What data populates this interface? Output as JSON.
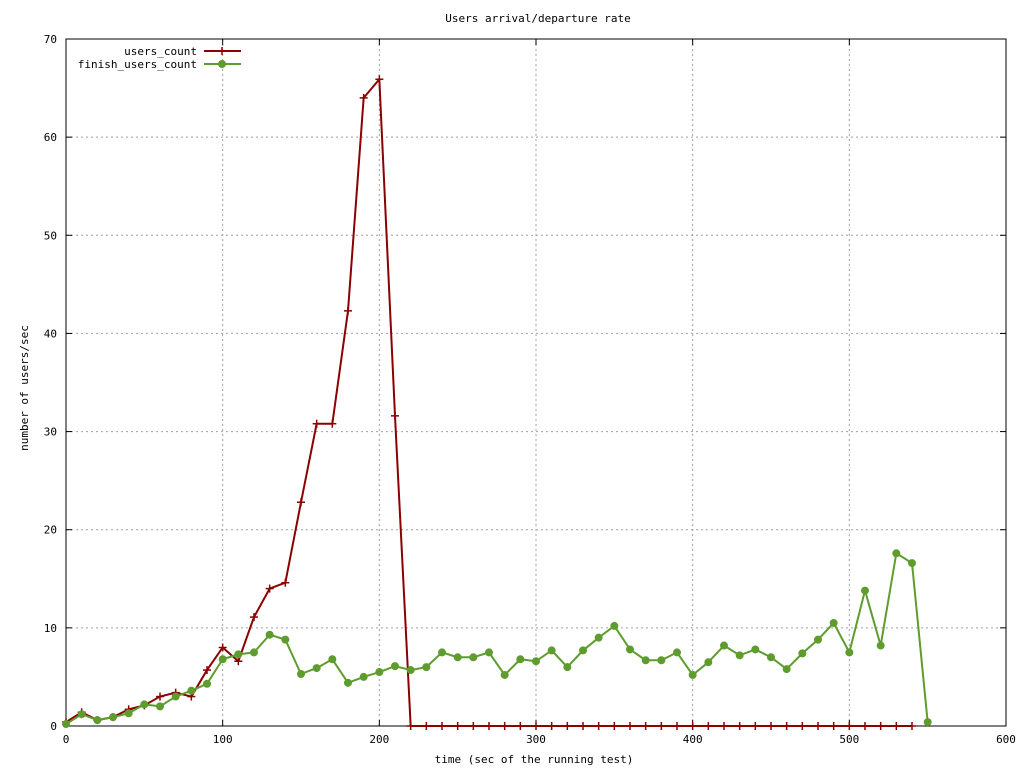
{
  "chart_data": {
    "type": "line",
    "title": "Users arrival/departure rate",
    "xlabel": "time (sec of the running test)",
    "ylabel": "number of users/sec",
    "xlim": [
      0,
      600
    ],
    "ylim": [
      0,
      70
    ],
    "xticks": [
      0,
      100,
      200,
      300,
      400,
      500,
      600
    ],
    "yticks": [
      0,
      10,
      20,
      30,
      40,
      50,
      60,
      70
    ],
    "grid": true,
    "legend_position": "top-left",
    "series": [
      {
        "name": "users_count",
        "color": "#8b0000",
        "marker": "plus",
        "x": [
          0,
          10,
          20,
          30,
          40,
          50,
          60,
          70,
          80,
          90,
          100,
          110,
          120,
          130,
          140,
          150,
          160,
          170,
          180,
          190,
          200,
          210,
          220,
          230,
          240,
          250,
          260,
          270,
          280,
          290,
          300,
          310,
          320,
          330,
          340,
          350,
          360,
          370,
          380,
          390,
          400,
          410,
          420,
          430,
          440,
          450,
          460,
          470,
          480,
          490,
          500,
          510,
          520,
          530,
          540
        ],
        "values": [
          0.4,
          1.4,
          0.6,
          0.9,
          1.7,
          2.1,
          3.0,
          3.4,
          3.0,
          5.7,
          8.0,
          6.6,
          11.1,
          14.0,
          14.6,
          22.8,
          30.8,
          30.8,
          42.3,
          64.0,
          65.9,
          31.6,
          0,
          0,
          0,
          0,
          0,
          0,
          0,
          0,
          0,
          0,
          0,
          0,
          0,
          0,
          0,
          0,
          0,
          0,
          0,
          0,
          0,
          0,
          0,
          0,
          0,
          0,
          0,
          0,
          0,
          0,
          0,
          0,
          0
        ]
      },
      {
        "name": "finish_users_count",
        "color": "#5e9c2e",
        "marker": "circle",
        "x": [
          0,
          10,
          20,
          30,
          40,
          50,
          60,
          70,
          80,
          90,
          100,
          110,
          120,
          130,
          140,
          150,
          160,
          170,
          180,
          190,
          200,
          210,
          220,
          230,
          240,
          250,
          260,
          270,
          280,
          290,
          300,
          310,
          320,
          330,
          340,
          350,
          360,
          370,
          380,
          390,
          400,
          410,
          420,
          430,
          440,
          450,
          460,
          470,
          480,
          490,
          500,
          510,
          520,
          530,
          540,
          550
        ],
        "values": [
          0.2,
          1.2,
          0.6,
          0.9,
          1.3,
          2.2,
          2.0,
          3.0,
          3.6,
          4.3,
          6.8,
          7.3,
          7.5,
          9.3,
          8.8,
          5.3,
          5.9,
          6.8,
          4.4,
          5.0,
          5.5,
          6.1,
          5.7,
          6.0,
          7.5,
          7.0,
          7.0,
          7.5,
          5.2,
          6.8,
          6.6,
          7.7,
          6.0,
          7.7,
          9.0,
          10.2,
          7.8,
          6.7,
          6.7,
          7.5,
          5.2,
          6.5,
          8.2,
          7.2,
          7.8,
          7.0,
          5.8,
          7.4,
          8.8,
          10.5,
          7.5,
          13.8,
          8.2,
          17.6,
          16.6,
          0.4
        ]
      }
    ]
  }
}
